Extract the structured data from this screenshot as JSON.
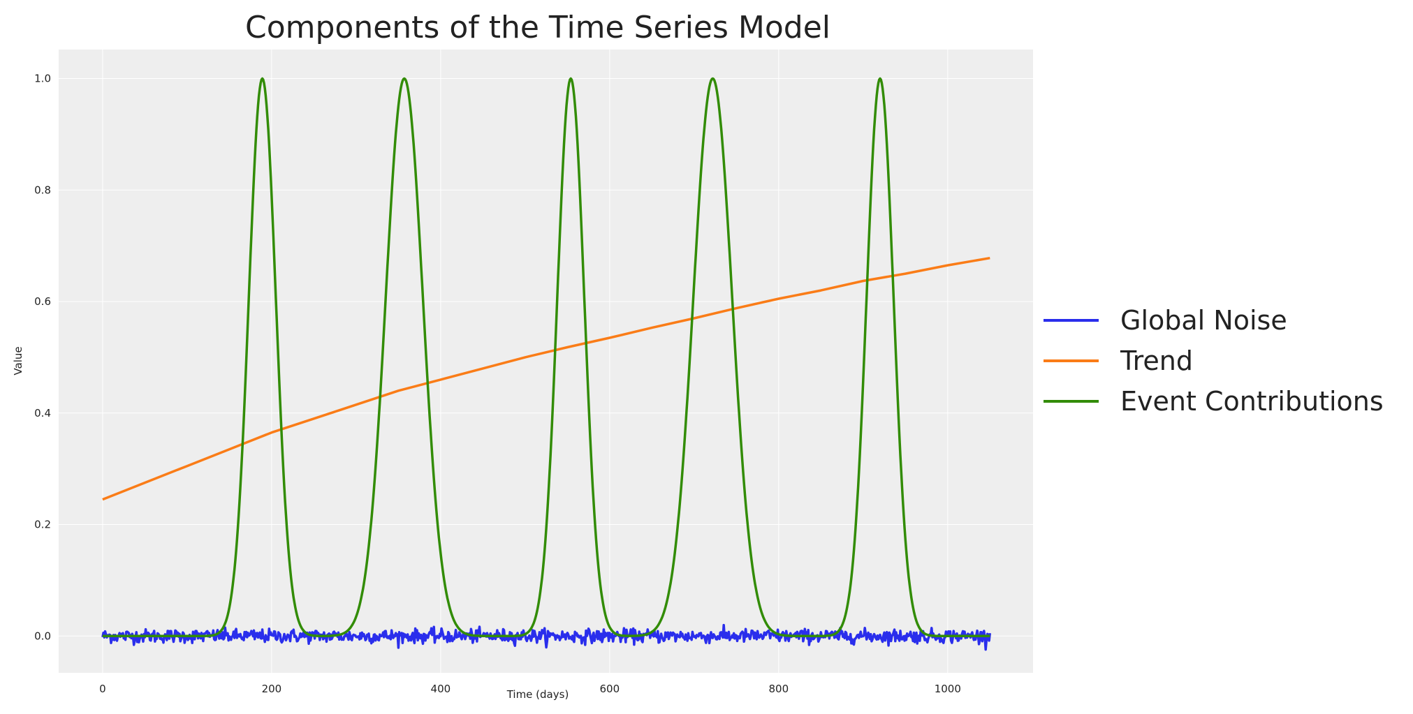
{
  "chart_data": {
    "type": "line",
    "title": "Components of the Time Series Model",
    "xlabel": "Time (days)",
    "ylabel": "Value",
    "xlim": [
      -52,
      1101
    ],
    "ylim": [
      -0.066,
      1.052
    ],
    "xticks": [
      "0",
      "200",
      "400",
      "600",
      "800",
      "1000"
    ],
    "yticks": [
      "0.0",
      "0.2",
      "0.4",
      "0.6",
      "0.8",
      "1.0"
    ],
    "grid": true,
    "legend_placement": "right, outside plot",
    "background": "#eeeeee",
    "series": [
      {
        "name": "Global Noise",
        "color": "#2a2eec",
        "kind": "noise",
        "x_range": [
          0,
          1050
        ],
        "mean": 0.0,
        "std": 0.006
      },
      {
        "name": "Trend",
        "color": "#fa7c17",
        "x": [
          0,
          50,
          100,
          150,
          200,
          250,
          300,
          350,
          400,
          450,
          500,
          550,
          600,
          650,
          700,
          750,
          800,
          850,
          900,
          950,
          1000,
          1050
        ],
        "y": [
          0.245,
          0.275,
          0.305,
          0.335,
          0.365,
          0.39,
          0.415,
          0.44,
          0.46,
          0.48,
          0.5,
          0.518,
          0.535,
          0.553,
          0.57,
          0.588,
          0.605,
          0.62,
          0.637,
          0.65,
          0.665,
          0.678
        ]
      },
      {
        "name": "Event Contributions",
        "color": "#328c06",
        "kind": "gaussian_peaks",
        "x_range": [
          0,
          1050
        ],
        "peaks": [
          {
            "center": 189,
            "height": 1.0,
            "sigma": 16
          },
          {
            "center": 357,
            "height": 1.0,
            "sigma": 22
          },
          {
            "center": 554,
            "height": 1.0,
            "sigma": 16
          },
          {
            "center": 722,
            "height": 1.0,
            "sigma": 23
          },
          {
            "center": 920,
            "height": 1.0,
            "sigma": 16
          }
        ]
      }
    ]
  }
}
